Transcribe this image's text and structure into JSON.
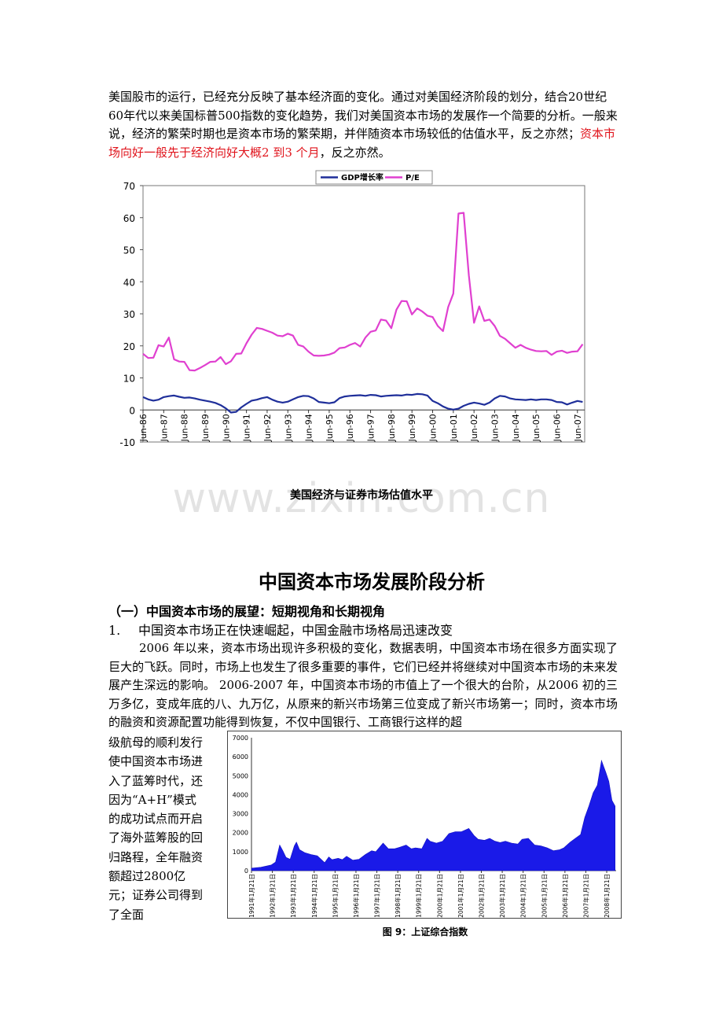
{
  "intro": {
    "text": "美国股市的运行，已经充分反映了基本经济面的变化。通过对美国经济阶段的划分，结合20世纪60年代以来美国标普500指数的变化趋势，我们对美国资本市场的发展作一个简要的分析。一般来说，经济的繁荣时期也是资本市场的繁荣期，并伴随资本市场较低的估值水平，反之亦然；",
    "highlight": "资本市场向好一般先于经济向好大概2 到3 个月",
    "tail": "，反之亦然。"
  },
  "watermark": "www.zixin.com.cn",
  "colors": {
    "gdp": "#1f2f9a",
    "pe": "#e040d0",
    "index": "#1a1ae8",
    "highlight": "#e0141c"
  },
  "chart_data": [
    {
      "type": "line",
      "title": "",
      "caption": "美国经济与证券市场估值水平",
      "xlabel": "",
      "ylabel": "",
      "ylim": [
        -10,
        70
      ],
      "yticks": [
        "70",
        "60",
        "50",
        "40",
        "30",
        "20",
        "10",
        "0",
        "-10"
      ],
      "xticks": [
        "Jun-86",
        "Jun-87",
        "Jun-88",
        "Jun-89",
        "Jun-90",
        "Jun-91",
        "Jun-92",
        "Jun-93",
        "Jun-94",
        "Jun-95",
        "Jun-96",
        "Jun-97",
        "Jun-98",
        "Jun-99",
        "Jun-00",
        "Jun-01",
        "Jun-02",
        "Jun-03",
        "Jun-04",
        "Jun-05",
        "Jun-06",
        "Jun-07"
      ],
      "legend_position": "top-center",
      "grid": false,
      "series": [
        {
          "name": "GDP增长率",
          "color": "#1f2f9a",
          "x": [
            1986.5,
            1986.75,
            1987,
            1987.25,
            1987.5,
            1987.75,
            1988,
            1988.25,
            1988.5,
            1988.75,
            1989,
            1989.25,
            1989.5,
            1989.75,
            1990,
            1990.25,
            1990.5,
            1990.75,
            1991,
            1991.25,
            1991.5,
            1991.75,
            1992,
            1992.25,
            1992.5,
            1992.75,
            1993,
            1993.25,
            1993.5,
            1993.75,
            1994,
            1994.25,
            1994.5,
            1994.75,
            1995,
            1995.25,
            1995.5,
            1995.75,
            1996,
            1996.25,
            1996.5,
            1996.75,
            1997,
            1997.25,
            1997.5,
            1997.75,
            1998,
            1998.25,
            1998.5,
            1998.75,
            1999,
            1999.25,
            1999.5,
            1999.75,
            2000,
            2000.25,
            2000.5,
            2000.75,
            2001,
            2001.25,
            2001.5,
            2001.75,
            2002,
            2002.25,
            2002.5,
            2002.75,
            2003,
            2003.25,
            2003.5,
            2003.75,
            2004,
            2004.25,
            2004.5,
            2004.75,
            2005,
            2005.25,
            2005.5,
            2005.75,
            2006,
            2006.25,
            2006.5,
            2006.75,
            2007,
            2007.25,
            2007.5,
            2007.75
          ],
          "y": [
            4,
            3.3,
            2.9,
            3.2,
            4,
            4.3,
            4.5,
            4.1,
            3.8,
            3.9,
            3.6,
            3.2,
            2.9,
            2.6,
            2.2,
            1.5,
            0.5,
            -0.8,
            -0.6,
            0.8,
            1.9,
            2.9,
            3.2,
            3.7,
            4,
            3.2,
            2.6,
            2.3,
            2.6,
            3.3,
            4,
            4.4,
            4.3,
            3.6,
            2.5,
            2.3,
            2.1,
            2.4,
            3.7,
            4.2,
            4.4,
            4.5,
            4.6,
            4.4,
            4.7,
            4.6,
            4.2,
            4.4,
            4.5,
            4.6,
            4.5,
            4.8,
            4.7,
            5,
            4.9,
            4.5,
            2.8,
            2.1,
            1.1,
            0.4,
            0.1,
            0.4,
            1.3,
            1.9,
            2.3,
            2,
            1.6,
            2.3,
            3.6,
            4.4,
            4.2,
            3.6,
            3.3,
            3.2,
            3.1,
            3.3,
            3.1,
            3.3,
            3.3,
            3.1,
            2.5,
            2.4,
            1.7,
            2.3,
            2.8,
            2.5
          ]
        },
        {
          "name": "P/E",
          "color": "#e040d0",
          "x": [
            1986.5,
            1986.75,
            1987,
            1987.25,
            1987.5,
            1987.75,
            1988,
            1988.25,
            1988.5,
            1988.75,
            1989,
            1989.25,
            1989.5,
            1989.75,
            1990,
            1990.25,
            1990.5,
            1990.75,
            1991,
            1991.25,
            1991.5,
            1991.75,
            1992,
            1992.25,
            1992.5,
            1992.75,
            1993,
            1993.25,
            1993.5,
            1993.75,
            1994,
            1994.25,
            1994.5,
            1994.75,
            1995,
            1995.25,
            1995.5,
            1995.75,
            1996,
            1996.25,
            1996.5,
            1996.75,
            1997,
            1997.25,
            1997.5,
            1997.75,
            1998,
            1998.25,
            1998.5,
            1998.75,
            1999,
            1999.25,
            1999.5,
            1999.75,
            2000,
            2000.25,
            2000.5,
            2000.75,
            2001,
            2001.25,
            2001.5,
            2001.75,
            2002,
            2002.25,
            2002.5,
            2002.75,
            2003,
            2003.25,
            2003.5,
            2003.75,
            2004,
            2004.25,
            2004.5,
            2004.75,
            2005,
            2005.25,
            2005.5,
            2005.75,
            2006,
            2006.25,
            2006.5,
            2006.75,
            2007,
            2007.25,
            2007.5,
            2007.75
          ],
          "y": [
            17.5,
            16.2,
            16.3,
            20.2,
            19.8,
            22.6,
            15.8,
            15.1,
            15,
            12.4,
            12.3,
            13.1,
            14,
            15,
            15.1,
            16.5,
            14.3,
            15.2,
            17.5,
            17.6,
            20.8,
            23.5,
            25.6,
            25.3,
            24.7,
            24.1,
            23.2,
            23,
            23.8,
            23.2,
            20.3,
            19.8,
            18.2,
            17,
            16.9,
            17,
            17.3,
            17.9,
            19.3,
            19.5,
            20.3,
            20.9,
            19.8,
            22.6,
            24.4,
            24.8,
            28.2,
            27.9,
            25.5,
            31.3,
            34,
            33.9,
            29.8,
            31.7,
            30.7,
            29.4,
            29,
            26.2,
            24.6,
            32.1,
            36.3,
            61.3,
            61.5,
            42,
            27.2,
            32.3,
            27.8,
            28.2,
            26.2,
            23.1,
            22.2,
            20.8,
            19.4,
            20.3,
            19.4,
            18.8,
            18.4,
            18.3,
            18.4,
            17.2,
            18.2,
            18.5,
            17.8,
            18.2,
            18.3,
            20.5
          ]
        }
      ]
    },
    {
      "type": "area",
      "title": "",
      "caption": "图 9：上证综合指数",
      "ylim": [
        0,
        7000
      ],
      "yticks": [
        "7000",
        "6000",
        "5000",
        "4000",
        "3000",
        "2000",
        "1000",
        "0"
      ],
      "xticks": [
        "1991年1月21日",
        "1992年1月21日",
        "1993年1月21日",
        "1994年1月21日",
        "1995年1月21日",
        "1996年1月21日",
        "1997年1月21日",
        "1998年1月21日",
        "1999年1月21日",
        "2000年1月21日",
        "2001年1月21日",
        "2002年1月21日",
        "2003年1月21日",
        "2004年1月21日",
        "2005年1月21日",
        "2006年1月21日",
        "2007年1月21日",
        "2008年1月21日"
      ],
      "grid": false,
      "series": [
        {
          "name": "",
          "color": "#1a1ae8",
          "x": [
            1991.05,
            1991.5,
            1992.0,
            1992.2,
            1992.4,
            1992.55,
            1992.7,
            1992.9,
            1993.1,
            1993.2,
            1993.35,
            1993.6,
            1993.9,
            1994.2,
            1994.55,
            1994.75,
            1994.9,
            1995.2,
            1995.4,
            1995.6,
            1995.9,
            1996.2,
            1996.5,
            1996.8,
            1997.0,
            1997.35,
            1997.6,
            1997.9,
            1998.2,
            1998.45,
            1998.7,
            1998.9,
            1999.2,
            1999.45,
            1999.6,
            1999.9,
            2000.2,
            2000.5,
            2000.8,
            2001.1,
            2001.45,
            2001.7,
            2001.9,
            2002.2,
            2002.45,
            2002.7,
            2002.95,
            2003.2,
            2003.5,
            2003.8,
            2004.0,
            2004.3,
            2004.6,
            2004.9,
            2005.2,
            2005.5,
            2005.8,
            2006.0,
            2006.3,
            2006.55,
            2006.8,
            2007.0,
            2007.2,
            2007.4,
            2007.6,
            2007.8,
            2007.9,
            2008.0,
            2008.15,
            2008.3,
            2008.45
          ],
          "y": [
            130,
            180,
            300,
            450,
            1350,
            1050,
            700,
            600,
            1300,
            1500,
            1100,
            950,
            850,
            780,
            420,
            720,
            580,
            650,
            580,
            760,
            550,
            600,
            850,
            1050,
            1000,
            1450,
            1150,
            1150,
            1250,
            1350,
            1150,
            1200,
            1150,
            1700,
            1550,
            1450,
            1550,
            1950,
            2050,
            2050,
            2220,
            1850,
            1650,
            1600,
            1700,
            1550,
            1480,
            1550,
            1450,
            1400,
            1650,
            1700,
            1350,
            1300,
            1200,
            1050,
            1100,
            1200,
            1500,
            1700,
            1900,
            2800,
            3400,
            4100,
            4500,
            5800,
            5500,
            5200,
            4700,
            3700,
            3400
          ]
        }
      ]
    }
  ],
  "section": {
    "title": "中国资本市场发展阶段分析",
    "subtitle": "（一）中国资本市场的展望：短期视角和长期视角",
    "point_num": "1.",
    "point_text": "中国资本市场正在快速崛起，中国金融市场格局迅速改变",
    "body": "2006 年以来，资本市场出现许多积极的变化，数据表明，中国资本市场在很多方面实现了巨大的飞跃。同时，市场上也发生了很多重要的事件，它们已经并将继续对中国资本市场的未来发展产生深远的影响。 2006-2007 年，中国资本市场的市值上了一个很大的台阶，从2006 初的三万多亿，变成年底的八、九万亿，从原来的新兴市场第三位变成了新兴市场第一；同时，资本市场的融资和资源配置功能得到恢复，不仅中国银行、工商银行这样的超",
    "side": "级航母的顺利发行使中国资本市场进入了蓝筹时代，还因为“A+H”模式的成功试点而开启了海外蓝筹股的回归路程，全年融资额超过2800亿元；证券公司得到了全面"
  }
}
